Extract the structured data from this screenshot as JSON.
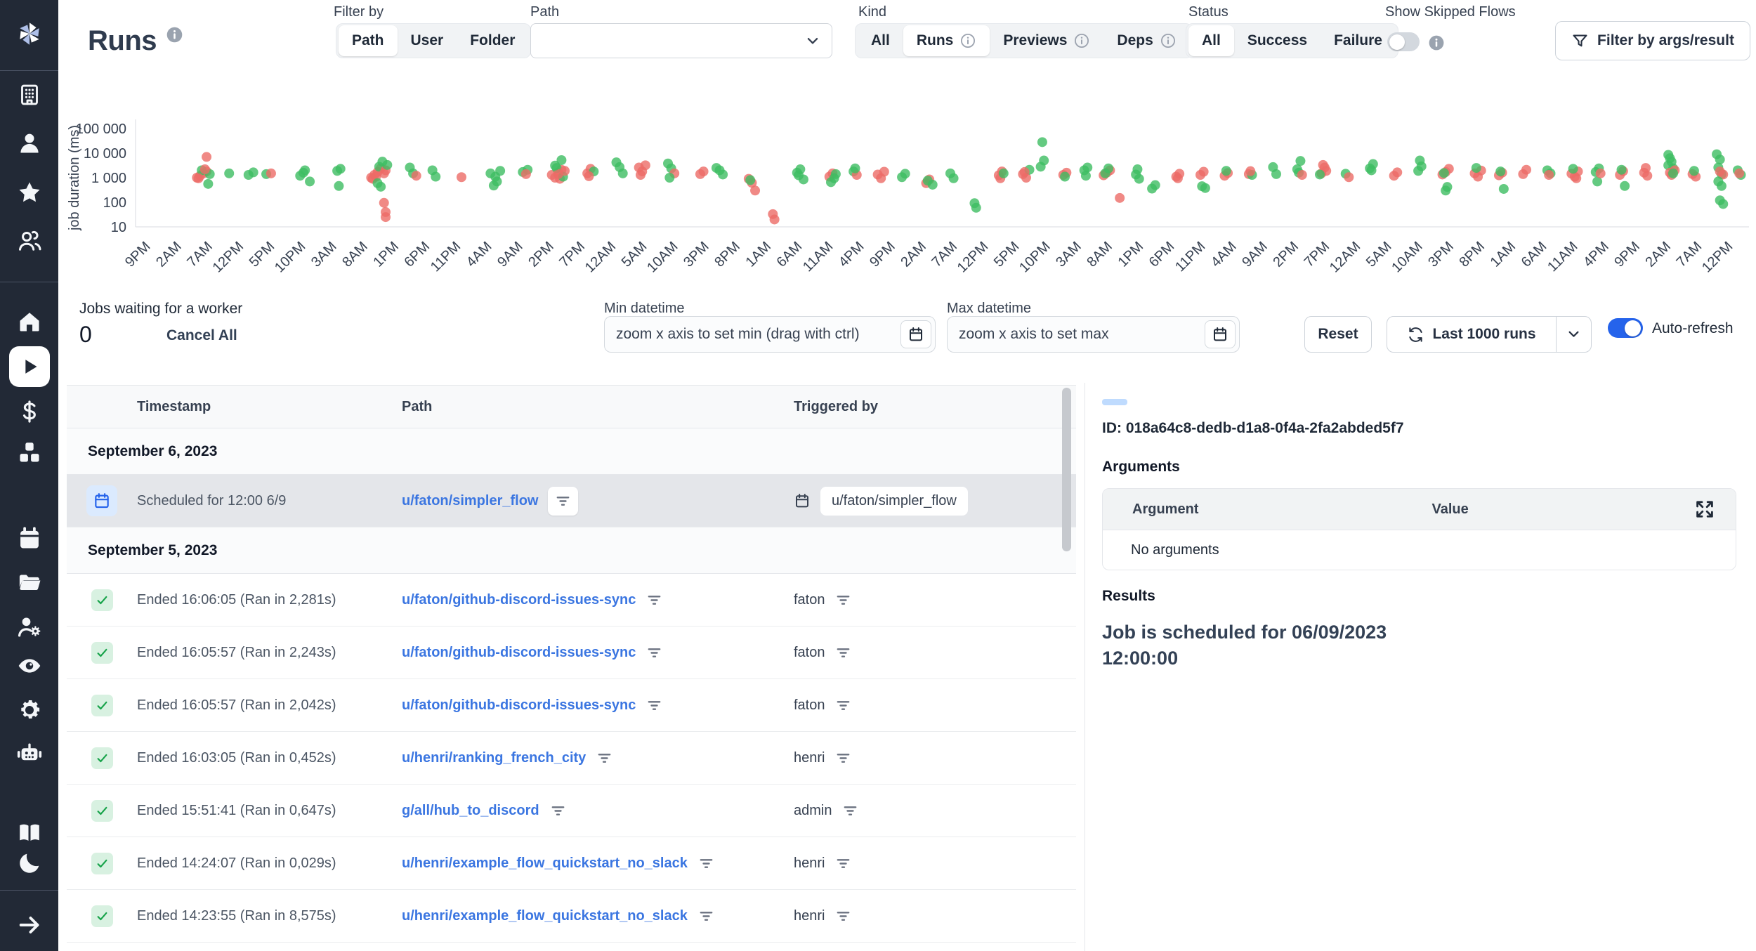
{
  "colors": {
    "sidebar_bg": "#222936",
    "accent_blue": "#2563eb",
    "link_blue": "#3b76e1",
    "success_green": "#3dbd61",
    "failure_red": "#ec6b66",
    "selected_row_bg": "#e4e6ea"
  },
  "sidebar": {
    "items": [
      {
        "type": "logo",
        "icon": "windmill-logo"
      },
      {
        "type": "divider"
      },
      {
        "type": "item",
        "icon": "building"
      },
      {
        "type": "item",
        "icon": "user"
      },
      {
        "type": "item",
        "icon": "star"
      },
      {
        "type": "item",
        "icon": "users"
      },
      {
        "type": "divider"
      },
      {
        "type": "item",
        "icon": "home"
      },
      {
        "type": "item",
        "icon": "play",
        "active": true
      },
      {
        "type": "item",
        "icon": "dollar"
      },
      {
        "type": "item",
        "icon": "boxes"
      },
      {
        "type": "item",
        "icon": "calendar"
      },
      {
        "type": "item",
        "icon": "folder"
      },
      {
        "type": "item",
        "icon": "user-cog"
      },
      {
        "type": "item",
        "icon": "eye"
      },
      {
        "type": "item",
        "icon": "gear"
      },
      {
        "type": "item",
        "icon": "robot"
      },
      {
        "type": "item",
        "icon": "book"
      },
      {
        "type": "item",
        "icon": "moon"
      },
      {
        "type": "divider"
      },
      {
        "type": "item",
        "icon": "arrow-right"
      }
    ]
  },
  "header": {
    "title": "Runs",
    "filter_by": {
      "label": "Filter by",
      "options": [
        "Path",
        "User",
        "Folder"
      ],
      "selected": "Path"
    },
    "path_filter": {
      "label": "Path",
      "value": ""
    },
    "kind": {
      "label": "Kind",
      "options": [
        "All",
        "Runs",
        "Previews",
        "Deps"
      ],
      "selected": "Runs",
      "info_options": [
        "Runs",
        "Previews",
        "Deps"
      ]
    },
    "status": {
      "label": "Status",
      "options": [
        "All",
        "Success",
        "Failure"
      ],
      "selected": "All"
    },
    "show_skipped": {
      "label": "Show Skipped Flows",
      "enabled": false
    },
    "args_filter_button": "Filter by args/result"
  },
  "controls": {
    "jobs_waiting_label": "Jobs waiting for a worker",
    "jobs_waiting_count": "0",
    "cancel_all": "Cancel All",
    "min_datetime": {
      "label": "Min datetime",
      "placeholder": "zoom x axis to set min (drag with ctrl)"
    },
    "max_datetime": {
      "label": "Max datetime",
      "placeholder": "zoom x axis to set max"
    },
    "reset": "Reset",
    "last_runs": "Last 1000 runs",
    "auto_refresh": "Auto-refresh",
    "auto_refresh_enabled": true
  },
  "chart_data": {
    "type": "scatter",
    "ylabel": "job duration (ms)",
    "y_scale": "log",
    "y_ticks": [
      10,
      100,
      1000,
      10000,
      100000
    ],
    "y_tick_labels": [
      "10",
      "100",
      "1 000",
      "10 000",
      "100 000"
    ],
    "ylim": [
      10,
      100000
    ],
    "grid": false,
    "legend": {
      "success_color": "#3dbd61",
      "failure_color": "#ec6b66"
    },
    "x_tick_labels": [
      "9PM",
      "2AM",
      "7AM",
      "12PM",
      "5PM",
      "10PM",
      "3AM",
      "8AM",
      "1PM",
      "6PM",
      "11PM",
      "4AM",
      "9AM",
      "2PM",
      "7PM",
      "12AM",
      "5AM",
      "10AM",
      "3PM",
      "8PM",
      "1AM",
      "6AM",
      "11AM",
      "4PM",
      "9PM",
      "2AM",
      "7AM",
      "12PM",
      "5PM",
      "10PM",
      "3AM",
      "8AM",
      "1PM",
      "6PM",
      "11PM",
      "4AM",
      "9AM",
      "2PM",
      "7PM",
      "12AM",
      "5AM",
      "10AM",
      "3PM",
      "8PM",
      "1AM",
      "6AM",
      "11AM",
      "4PM",
      "9PM",
      "2AM",
      "7AM",
      "12PM"
    ],
    "points_format": [
      "x_percent_of_axis",
      "duration_ms",
      "s=success f=failure"
    ],
    "points": [
      [
        4.0,
        1200,
        "f"
      ],
      [
        4.2,
        1500,
        "f"
      ],
      [
        3.8,
        1000,
        "f"
      ],
      [
        4.4,
        1800,
        "f"
      ],
      [
        4.1,
        2000,
        "s"
      ],
      [
        3.9,
        950,
        "f"
      ],
      [
        4.6,
        1400,
        "s"
      ],
      [
        4.3,
        2200,
        "f"
      ],
      [
        4.5,
        560,
        "s"
      ],
      [
        4.4,
        7000,
        "f"
      ],
      [
        5.8,
        1500,
        "s"
      ],
      [
        7.0,
        1300,
        "s"
      ],
      [
        7.3,
        1650,
        "s"
      ],
      [
        8.1,
        1400,
        "s"
      ],
      [
        8.4,
        1500,
        "f"
      ],
      [
        10.2,
        1200,
        "s"
      ],
      [
        10.5,
        2000,
        "s"
      ],
      [
        10.8,
        700,
        "s"
      ],
      [
        10.4,
        1600,
        "s"
      ],
      [
        12.5,
        1900,
        "s"
      ],
      [
        12.7,
        2300,
        "s"
      ],
      [
        12.6,
        460,
        "s"
      ],
      [
        14.6,
        1000,
        "f"
      ],
      [
        14.8,
        1300,
        "f"
      ],
      [
        15.0,
        1700,
        "f"
      ],
      [
        15.2,
        2400,
        "f"
      ],
      [
        14.7,
        900,
        "f"
      ],
      [
        15.1,
        2800,
        "s"
      ],
      [
        15.3,
        4500,
        "s"
      ],
      [
        15.4,
        1500,
        "f"
      ],
      [
        14.9,
        1100,
        "f"
      ],
      [
        15.5,
        2000,
        "f"
      ],
      [
        15.0,
        600,
        "s"
      ],
      [
        15.2,
        430,
        "s"
      ],
      [
        15.6,
        3300,
        "s"
      ],
      [
        15.4,
        95,
        "f"
      ],
      [
        15.5,
        40,
        "f"
      ],
      [
        15.5,
        25,
        "f"
      ],
      [
        17.0,
        2600,
        "s"
      ],
      [
        17.2,
        1500,
        "s"
      ],
      [
        17.4,
        1200,
        "f"
      ],
      [
        18.4,
        2000,
        "s"
      ],
      [
        18.6,
        1100,
        "s"
      ],
      [
        20.2,
        1050,
        "f"
      ],
      [
        22.0,
        1500,
        "s"
      ],
      [
        22.3,
        1100,
        "s"
      ],
      [
        22.6,
        1900,
        "s"
      ],
      [
        22.4,
        700,
        "s"
      ],
      [
        22.2,
        480,
        "s"
      ],
      [
        24.0,
        1700,
        "s"
      ],
      [
        24.3,
        2100,
        "s"
      ],
      [
        24.2,
        1400,
        "f"
      ],
      [
        25.8,
        1300,
        "f"
      ],
      [
        26.0,
        1000,
        "f"
      ],
      [
        26.2,
        1600,
        "f"
      ],
      [
        26.4,
        2100,
        "f"
      ],
      [
        26.1,
        2500,
        "s"
      ],
      [
        26.3,
        900,
        "f"
      ],
      [
        26.5,
        1100,
        "s"
      ],
      [
        26.6,
        1900,
        "f"
      ],
      [
        26.2,
        1400,
        "f"
      ],
      [
        26.4,
        5200,
        "s"
      ],
      [
        26.0,
        3100,
        "s"
      ],
      [
        28.0,
        1500,
        "f"
      ],
      [
        28.2,
        2300,
        "f"
      ],
      [
        28.4,
        1800,
        "s"
      ],
      [
        28.1,
        1150,
        "f"
      ],
      [
        29.8,
        4200,
        "s"
      ],
      [
        30.0,
        2700,
        "s"
      ],
      [
        30.2,
        1500,
        "s"
      ],
      [
        31.2,
        2600,
        "f"
      ],
      [
        31.4,
        1800,
        "f"
      ],
      [
        31.6,
        3200,
        "f"
      ],
      [
        31.3,
        1300,
        "f"
      ],
      [
        33.0,
        3800,
        "s"
      ],
      [
        33.2,
        2400,
        "s"
      ],
      [
        33.4,
        1500,
        "f"
      ],
      [
        33.1,
        1000,
        "s"
      ],
      [
        35.0,
        1400,
        "f"
      ],
      [
        35.2,
        1800,
        "f"
      ],
      [
        36.0,
        2500,
        "s"
      ],
      [
        36.2,
        2000,
        "s"
      ],
      [
        36.4,
        1350,
        "s"
      ],
      [
        38.0,
        900,
        "f"
      ],
      [
        38.2,
        620,
        "f"
      ],
      [
        38.4,
        300,
        "f"
      ],
      [
        38.1,
        800,
        "s"
      ],
      [
        39.5,
        33,
        "f"
      ],
      [
        39.6,
        20,
        "f"
      ],
      [
        41.0,
        1600,
        "s"
      ],
      [
        41.2,
        2200,
        "s"
      ],
      [
        41.4,
        850,
        "s"
      ],
      [
        41.1,
        1250,
        "s"
      ],
      [
        43.0,
        1100,
        "f"
      ],
      [
        43.2,
        1500,
        "f"
      ],
      [
        43.4,
        1400,
        "s"
      ],
      [
        43.1,
        660,
        "s"
      ],
      [
        43.3,
        950,
        "s"
      ],
      [
        44.5,
        1800,
        "s"
      ],
      [
        44.7,
        1300,
        "f"
      ],
      [
        44.6,
        2400,
        "s"
      ],
      [
        46.0,
        1350,
        "f"
      ],
      [
        46.2,
        950,
        "f"
      ],
      [
        46.4,
        1750,
        "f"
      ],
      [
        47.5,
        1050,
        "s"
      ],
      [
        47.7,
        1450,
        "s"
      ],
      [
        49.0,
        600,
        "f"
      ],
      [
        49.2,
        850,
        "f"
      ],
      [
        49.4,
        520,
        "s"
      ],
      [
        49.1,
        760,
        "s"
      ],
      [
        50.5,
        1500,
        "s"
      ],
      [
        50.7,
        950,
        "s"
      ],
      [
        52.0,
        92,
        "s"
      ],
      [
        52.1,
        60,
        "s"
      ],
      [
        53.5,
        1250,
        "f"
      ],
      [
        53.7,
        1800,
        "f"
      ],
      [
        53.6,
        950,
        "f"
      ],
      [
        53.8,
        1500,
        "s"
      ],
      [
        55.0,
        1400,
        "f"
      ],
      [
        55.2,
        1000,
        "f"
      ],
      [
        55.4,
        2100,
        "s"
      ],
      [
        55.1,
        1700,
        "f"
      ],
      [
        56.2,
        28000,
        "s"
      ],
      [
        56.3,
        5000,
        "s"
      ],
      [
        56.1,
        2800,
        "s"
      ],
      [
        57.5,
        1300,
        "f"
      ],
      [
        57.7,
        1600,
        "f"
      ],
      [
        57.6,
        1100,
        "s"
      ],
      [
        58.8,
        2000,
        "s"
      ],
      [
        59.0,
        2600,
        "s"
      ],
      [
        58.9,
        1200,
        "s"
      ],
      [
        60.0,
        1250,
        "f"
      ],
      [
        60.2,
        1600,
        "f"
      ],
      [
        60.4,
        2000,
        "f"
      ],
      [
        60.1,
        1500,
        "s"
      ],
      [
        60.3,
        2400,
        "s"
      ],
      [
        61.0,
        150,
        "f"
      ],
      [
        62.0,
        1350,
        "s"
      ],
      [
        62.2,
        900,
        "s"
      ],
      [
        62.1,
        2200,
        "s"
      ],
      [
        63.0,
        360,
        "s"
      ],
      [
        63.2,
        500,
        "s"
      ],
      [
        64.5,
        1100,
        "f"
      ],
      [
        64.7,
        1450,
        "f"
      ],
      [
        64.6,
        950,
        "f"
      ],
      [
        66.0,
        1300,
        "f"
      ],
      [
        66.2,
        1750,
        "f"
      ],
      [
        66.1,
        450,
        "s"
      ],
      [
        66.3,
        380,
        "s"
      ],
      [
        67.5,
        1200,
        "f"
      ],
      [
        67.7,
        1550,
        "f"
      ],
      [
        67.6,
        1900,
        "s"
      ],
      [
        69.0,
        1400,
        "f"
      ],
      [
        69.2,
        1300,
        "s"
      ],
      [
        69.1,
        1850,
        "f"
      ],
      [
        70.5,
        2700,
        "s"
      ],
      [
        70.7,
        1400,
        "s"
      ],
      [
        72.0,
        2200,
        "s"
      ],
      [
        72.2,
        4800,
        "s"
      ],
      [
        72.1,
        1600,
        "s"
      ],
      [
        72.3,
        1300,
        "f"
      ],
      [
        73.5,
        1500,
        "f"
      ],
      [
        73.7,
        2600,
        "f"
      ],
      [
        73.6,
        3300,
        "f"
      ],
      [
        73.8,
        1900,
        "f"
      ],
      [
        73.4,
        1350,
        "s"
      ],
      [
        75.0,
        1450,
        "s"
      ],
      [
        75.2,
        1050,
        "f"
      ],
      [
        76.5,
        2400,
        "s"
      ],
      [
        76.7,
        3600,
        "s"
      ],
      [
        76.6,
        2000,
        "s"
      ],
      [
        78.0,
        1200,
        "f"
      ],
      [
        78.2,
        1650,
        "f"
      ],
      [
        79.5,
        1900,
        "s"
      ],
      [
        79.7,
        2900,
        "s"
      ],
      [
        79.6,
        5000,
        "s"
      ],
      [
        81.0,
        1350,
        "f"
      ],
      [
        81.2,
        1700,
        "f"
      ],
      [
        81.4,
        2300,
        "f"
      ],
      [
        81.1,
        1550,
        "s"
      ],
      [
        81.3,
        420,
        "s"
      ],
      [
        81.2,
        300,
        "s"
      ],
      [
        83.0,
        1500,
        "f"
      ],
      [
        83.2,
        1100,
        "f"
      ],
      [
        83.4,
        1950,
        "f"
      ],
      [
        83.1,
        2500,
        "s"
      ],
      [
        84.5,
        1250,
        "f"
      ],
      [
        84.7,
        1600,
        "f"
      ],
      [
        84.6,
        1800,
        "s"
      ],
      [
        84.8,
        350,
        "s"
      ],
      [
        86.0,
        1400,
        "f"
      ],
      [
        86.2,
        2100,
        "f"
      ],
      [
        87.5,
        2000,
        "s"
      ],
      [
        87.7,
        1500,
        "s"
      ],
      [
        87.6,
        1300,
        "f"
      ],
      [
        89.0,
        1450,
        "f"
      ],
      [
        89.2,
        1100,
        "f"
      ],
      [
        89.4,
        1800,
        "f"
      ],
      [
        89.1,
        2300,
        "s"
      ],
      [
        89.3,
        950,
        "f"
      ],
      [
        90.5,
        1700,
        "s"
      ],
      [
        90.7,
        2400,
        "s"
      ],
      [
        90.6,
        700,
        "s"
      ],
      [
        90.8,
        1500,
        "f"
      ],
      [
        92.0,
        1300,
        "f"
      ],
      [
        92.2,
        1850,
        "f"
      ],
      [
        92.1,
        2100,
        "s"
      ],
      [
        92.3,
        460,
        "s"
      ],
      [
        93.5,
        1600,
        "f"
      ],
      [
        93.7,
        1200,
        "f"
      ],
      [
        93.6,
        2500,
        "f"
      ],
      [
        95.0,
        8500,
        "s"
      ],
      [
        95.1,
        6200,
        "s"
      ],
      [
        95.2,
        4500,
        "s"
      ],
      [
        95.0,
        3200,
        "s"
      ],
      [
        95.3,
        2400,
        "s"
      ],
      [
        95.1,
        1600,
        "f"
      ],
      [
        95.2,
        1300,
        "f"
      ],
      [
        95.4,
        2000,
        "f"
      ],
      [
        95.3,
        1500,
        "s"
      ],
      [
        96.5,
        1400,
        "f"
      ],
      [
        96.7,
        1100,
        "f"
      ],
      [
        96.6,
        1900,
        "s"
      ],
      [
        98.0,
        9000,
        "s"
      ],
      [
        98.2,
        5500,
        "s"
      ],
      [
        98.1,
        2600,
        "s"
      ],
      [
        98.3,
        1400,
        "s"
      ],
      [
        98.2,
        1800,
        "f"
      ],
      [
        98.4,
        1350,
        "f"
      ],
      [
        98.1,
        700,
        "s"
      ],
      [
        98.3,
        460,
        "s"
      ],
      [
        98.2,
        120,
        "s"
      ],
      [
        98.4,
        85,
        "s"
      ],
      [
        99.3,
        2000,
        "s"
      ],
      [
        99.5,
        1300,
        "s"
      ],
      [
        99.4,
        1500,
        "f"
      ]
    ]
  },
  "table": {
    "columns": [
      "Timestamp",
      "Path",
      "Triggered by"
    ],
    "rows": [
      {
        "type": "date",
        "label": "September 6, 2023"
      },
      {
        "type": "run",
        "selected": true,
        "status_icon": "calendar",
        "timestamp": "Scheduled for 12:00 6/9",
        "path": "u/faton/simpler_flow",
        "trigger": "u/faton/simpler_flow",
        "trigger_is_schedule": true
      },
      {
        "type": "date",
        "label": "September 5, 2023"
      },
      {
        "type": "run",
        "status_icon": "check",
        "timestamp": "Ended 16:06:05 (Ran in 2,281s)",
        "path": "u/faton/github-discord-issues-sync",
        "trigger": "faton"
      },
      {
        "type": "run",
        "status_icon": "check",
        "timestamp": "Ended 16:05:57 (Ran in 2,243s)",
        "path": "u/faton/github-discord-issues-sync",
        "trigger": "faton"
      },
      {
        "type": "run",
        "status_icon": "check",
        "timestamp": "Ended 16:05:57 (Ran in 2,042s)",
        "path": "u/faton/github-discord-issues-sync",
        "trigger": "faton"
      },
      {
        "type": "run",
        "status_icon": "check",
        "timestamp": "Ended 16:03:05 (Ran in 0,452s)",
        "path": "u/henri/ranking_french_city",
        "trigger": "henri"
      },
      {
        "type": "run",
        "status_icon": "check",
        "timestamp": "Ended 15:51:41 (Ran in 0,647s)",
        "path": "g/all/hub_to_discord",
        "trigger": "admin"
      },
      {
        "type": "run",
        "status_icon": "check",
        "timestamp": "Ended 14:24:07 (Ran in 0,029s)",
        "path": "u/henri/example_flow_quickstart_no_slack",
        "trigger": "henri"
      },
      {
        "type": "run",
        "status_icon": "check",
        "timestamp": "Ended 14:23:55 (Ran in 8,575s)",
        "path": "u/henri/example_flow_quickstart_no_slack",
        "trigger": "henri"
      }
    ]
  },
  "details": {
    "id": "ID: 018a64c8-dedb-d1a8-0f4a-2fa2abded5f7",
    "arguments_title": "Arguments",
    "args_table": {
      "columns": [
        "Argument",
        "Value"
      ],
      "empty": "No arguments"
    },
    "results_title": "Results",
    "result_text": "Job is scheduled for 06/09/2023 12:00:00"
  }
}
